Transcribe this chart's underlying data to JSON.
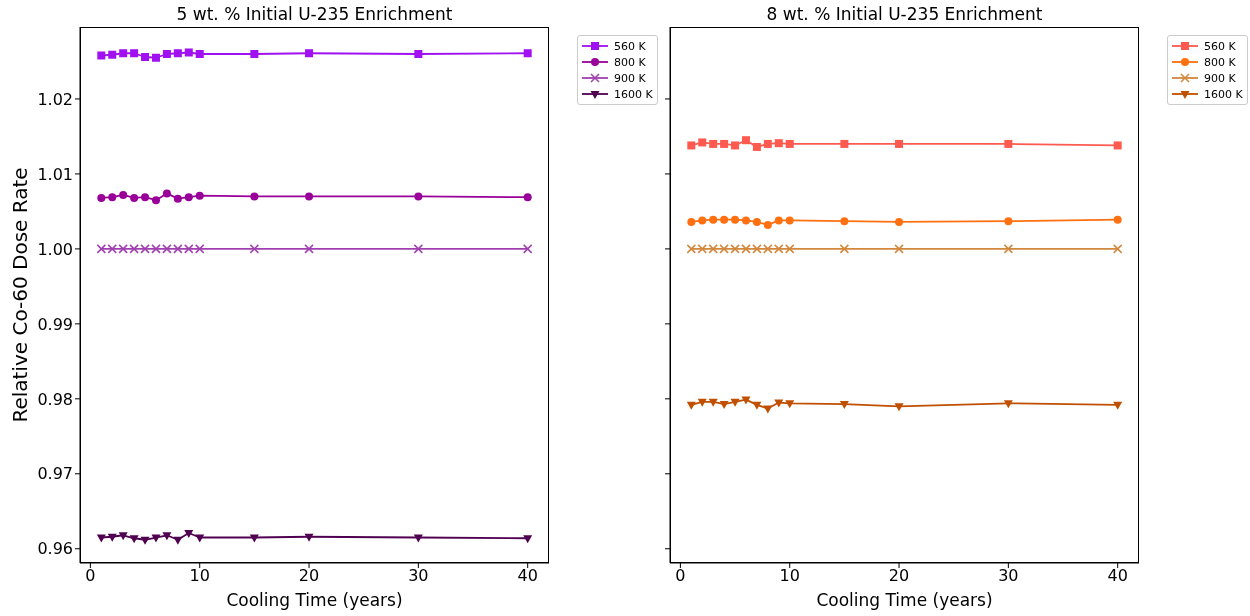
{
  "chart_data": [
    {
      "type": "line",
      "title": "5 wt. % Initial U-235 Enrichment",
      "xlabel": "Cooling Time (years)",
      "ylabel": "Relative Co-60 Dose Rate",
      "x": [
        1,
        2,
        3,
        4,
        5,
        6,
        7,
        8,
        9,
        10,
        15,
        20,
        30,
        40
      ],
      "xlim": [
        -0.95,
        41.95
      ],
      "xticks": [
        0,
        10,
        20,
        30,
        40
      ],
      "ylim": [
        0.9581,
        1.0296
      ],
      "yticks": [
        0.96,
        0.97,
        0.98,
        0.99,
        {
          "value": 1.0,
          "label": "1.00"
        },
        1.01,
        1.02
      ],
      "legend": "top right",
      "line_style": "solid",
      "series": [
        {
          "name": "560 K",
          "color": "#a010f0",
          "marker": "square",
          "values": [
            1.0258,
            1.0259,
            1.0261,
            1.0261,
            1.0256,
            1.0255,
            1.026,
            1.0261,
            1.0262,
            1.026,
            1.026,
            1.0261,
            1.026,
            1.0261
          ]
        },
        {
          "name": "800 K",
          "color": "#990099",
          "marker": "circle",
          "values": [
            1.0068,
            1.0069,
            1.0072,
            1.0068,
            1.0069,
            1.0065,
            1.0074,
            1.0067,
            1.0069,
            1.0071,
            1.007,
            1.007,
            1.007,
            1.0069
          ]
        },
        {
          "name": "900 K",
          "color": "#a040b0",
          "marker": "cross",
          "values": [
            1.0,
            1.0,
            1.0,
            1.0,
            1.0,
            1.0,
            1.0,
            1.0,
            1.0,
            1.0,
            1.0,
            1.0,
            1.0,
            1.0
          ]
        },
        {
          "name": "1600 K",
          "color": "#500050",
          "marker": "triangle",
          "values": [
            0.9615,
            0.9616,
            0.9618,
            0.9614,
            0.9612,
            0.9615,
            0.9618,
            0.9612,
            0.9621,
            0.9615,
            0.9615,
            0.9616,
            0.9615,
            0.9614
          ]
        }
      ]
    },
    {
      "type": "line",
      "title": "8 wt. % Initial U-235 Enrichment",
      "xlabel": "Cooling Time (years)",
      "x": [
        1,
        2,
        3,
        4,
        5,
        6,
        7,
        8,
        9,
        10,
        15,
        20,
        30,
        40
      ],
      "xlim": [
        -0.95,
        41.95
      ],
      "xticks": [
        0,
        10,
        20,
        30,
        40
      ],
      "ylim": [
        0.9581,
        1.0296
      ],
      "yticks": [
        0.96,
        0.97,
        0.98,
        0.99,
        1.0,
        1.01,
        1.02
      ],
      "tick_labels": "x",
      "legend": "top right",
      "line_style": "solid",
      "series": [
        {
          "name": "560 K",
          "color": "#ff5a50",
          "marker": "square",
          "values": [
            1.0138,
            1.0142,
            1.014,
            1.014,
            1.0138,
            1.0145,
            1.0136,
            1.014,
            1.0141,
            1.014,
            1.014,
            1.014,
            1.014,
            1.0138
          ]
        },
        {
          "name": "800 K",
          "color": "#ff7010",
          "marker": "circle",
          "values": [
            1.0036,
            1.0038,
            1.0039,
            1.0039,
            1.0039,
            1.0038,
            1.0036,
            1.0032,
            1.0038,
            1.0038,
            1.0037,
            1.0036,
            1.0037,
            1.0039
          ]
        },
        {
          "name": "900 K",
          "color": "#d2873c",
          "marker": "cross",
          "values": [
            1.0,
            1.0,
            1.0,
            1.0,
            1.0,
            1.0,
            1.0,
            1.0,
            1.0,
            1.0,
            1.0,
            1.0,
            1.0,
            1.0
          ]
        },
        {
          "name": "1600 K",
          "color": "#c05000",
          "marker": "triangle",
          "values": [
            0.9792,
            0.9796,
            0.9796,
            0.9793,
            0.9796,
            0.9799,
            0.9792,
            0.9787,
            0.9795,
            0.9794,
            0.9793,
            0.979,
            0.9794,
            0.9792
          ]
        }
      ]
    }
  ]
}
